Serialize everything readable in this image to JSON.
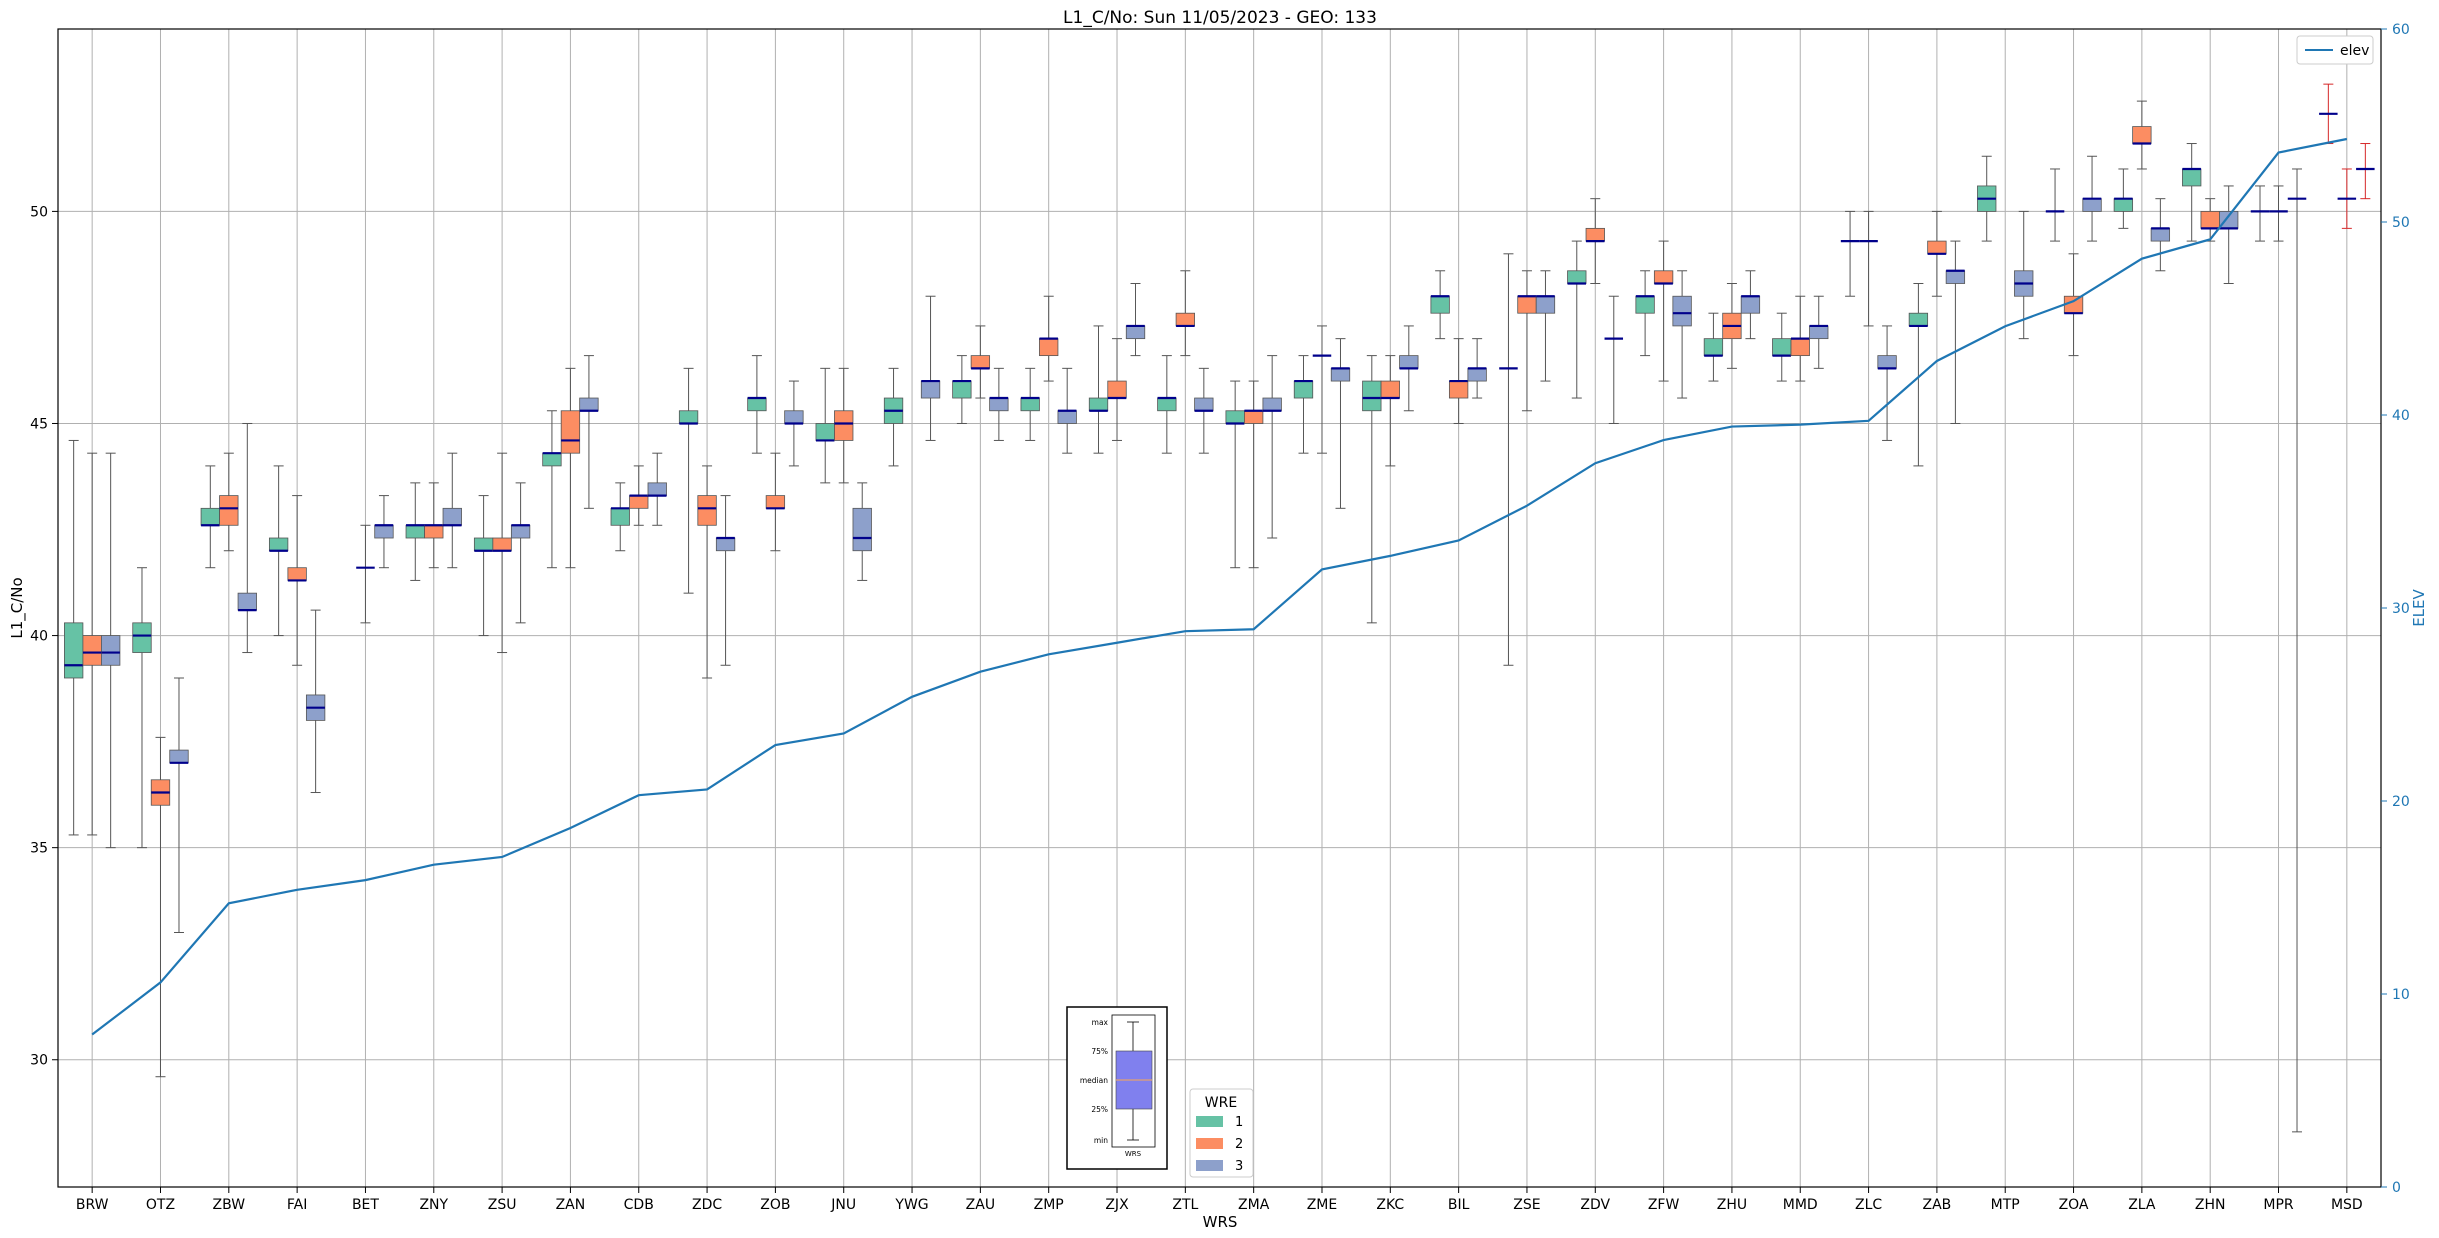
{
  "chart_data": {
    "type": "box",
    "title": "L1_C/No: Sun 11/05/2023 - GEO: 133",
    "xlabel": "WRS",
    "ylabel": "L1_C/No",
    "y2label": "ELEV",
    "ylim": [
      27.0,
      54.3
    ],
    "y2lim": [
      0,
      60
    ],
    "yticks": [
      30,
      35,
      40,
      45,
      50
    ],
    "y2ticks": [
      0,
      10,
      20,
      30,
      40,
      50,
      60
    ],
    "grid": true,
    "legend_elev": {
      "label": "elev",
      "position": "top-right"
    },
    "legend_wre": {
      "title": "WRE",
      "position": "bottom-center",
      "entries": [
        "1",
        "2",
        "3"
      ]
    },
    "key_box": {
      "labels": [
        "max",
        "75%",
        "median",
        "25%",
        "min"
      ],
      "xlabel": "WRS"
    },
    "colors": {
      "wre1": "#66c2a5",
      "wre2": "#fc8d62",
      "wre3": "#8da0cb",
      "median": "#00008b",
      "elev": "#1f77b4",
      "whisker": "#555555",
      "outlier_whisker": "#d62728",
      "key_box": "#8080ee"
    },
    "categories": [
      "BRW",
      "OTZ",
      "ZBW",
      "FAI",
      "BET",
      "ZNY",
      "ZSU",
      "ZAN",
      "CDB",
      "ZDC",
      "ZOB",
      "JNU",
      "YWG",
      "ZAU",
      "ZMP",
      "ZJX",
      "ZTL",
      "ZMA",
      "ZME",
      "ZKC",
      "BIL",
      "ZSE",
      "ZDV",
      "ZFW",
      "ZHU",
      "MMD",
      "ZLC",
      "ZAB",
      "MTP",
      "ZOA",
      "ZLA",
      "ZHN",
      "MPR",
      "MSD"
    ],
    "elev": [
      7.9,
      10.6,
      14.7,
      15.4,
      15.9,
      16.7,
      17.1,
      18.6,
      20.3,
      20.6,
      22.9,
      23.5,
      25.4,
      26.7,
      27.6,
      28.2,
      28.8,
      28.9,
      32.0,
      32.7,
      33.5,
      35.3,
      37.5,
      38.7,
      39.4,
      39.5,
      39.7,
      42.8,
      44.6,
      45.9,
      48.1,
      49.1,
      53.6,
      54.3
    ],
    "boxes": [
      {
        "station": "BRW",
        "wre": 1,
        "min": 35.3,
        "q1": 39.0,
        "median": 39.3,
        "q3": 40.3,
        "max": 44.6
      },
      {
        "station": "BRW",
        "wre": 2,
        "min": 35.3,
        "q1": 39.3,
        "median": 39.6,
        "q3": 40.0,
        "max": 44.3
      },
      {
        "station": "BRW",
        "wre": 3,
        "min": 35.0,
        "q1": 39.3,
        "median": 39.6,
        "q3": 40.0,
        "max": 44.3
      },
      {
        "station": "OTZ",
        "wre": 1,
        "min": 35.0,
        "q1": 39.6,
        "median": 40.0,
        "q3": 40.3,
        "max": 41.6
      },
      {
        "station": "OTZ",
        "wre": 2,
        "min": 29.6,
        "q1": 36.0,
        "median": 36.3,
        "q3": 36.6,
        "max": 37.6
      },
      {
        "station": "OTZ",
        "wre": 3,
        "min": 33.0,
        "q1": 37.0,
        "median": 37.0,
        "q3": 37.3,
        "max": 39.0
      },
      {
        "station": "ZBW",
        "wre": 1,
        "min": 41.6,
        "q1": 42.6,
        "median": 42.6,
        "q3": 43.0,
        "max": 44.0
      },
      {
        "station": "ZBW",
        "wre": 2,
        "min": 42.0,
        "q1": 42.6,
        "median": 43.0,
        "q3": 43.3,
        "max": 44.3
      },
      {
        "station": "ZBW",
        "wre": 3,
        "min": 39.6,
        "q1": 40.6,
        "median": 40.6,
        "q3": 41.0,
        "max": 45.0
      },
      {
        "station": "FAI",
        "wre": 1,
        "min": 40.0,
        "q1": 42.0,
        "median": 42.0,
        "q3": 42.3,
        "max": 44.0
      },
      {
        "station": "FAI",
        "wre": 2,
        "min": 39.3,
        "q1": 41.3,
        "median": 41.3,
        "q3": 41.6,
        "max": 43.3
      },
      {
        "station": "FAI",
        "wre": 3,
        "min": 36.3,
        "q1": 38.0,
        "median": 38.3,
        "q3": 38.6,
        "max": 40.6
      },
      {
        "station": "BET",
        "wre": 2,
        "min": 40.3,
        "q1": 41.6,
        "median": 41.6,
        "q3": 41.6,
        "max": 42.6
      },
      {
        "station": "BET",
        "wre": 3,
        "min": 41.6,
        "q1": 42.3,
        "median": 42.6,
        "q3": 42.6,
        "max": 43.3
      },
      {
        "station": "ZNY",
        "wre": 1,
        "min": 41.3,
        "q1": 42.3,
        "median": 42.6,
        "q3": 42.6,
        "max": 43.6
      },
      {
        "station": "ZNY",
        "wre": 2,
        "min": 41.6,
        "q1": 42.3,
        "median": 42.6,
        "q3": 42.6,
        "max": 43.6
      },
      {
        "station": "ZNY",
        "wre": 3,
        "min": 41.6,
        "q1": 42.6,
        "median": 42.6,
        "q3": 43.0,
        "max": 44.3
      },
      {
        "station": "ZSU",
        "wre": 1,
        "min": 40.0,
        "q1": 42.0,
        "median": 42.0,
        "q3": 42.3,
        "max": 43.3
      },
      {
        "station": "ZSU",
        "wre": 2,
        "min": 39.6,
        "q1": 42.0,
        "median": 42.0,
        "q3": 42.3,
        "max": 44.3
      },
      {
        "station": "ZSU",
        "wre": 3,
        "min": 40.3,
        "q1": 42.3,
        "median": 42.6,
        "q3": 42.6,
        "max": 43.6
      },
      {
        "station": "ZAN",
        "wre": 1,
        "min": 41.6,
        "q1": 44.0,
        "median": 44.3,
        "q3": 44.3,
        "max": 45.3
      },
      {
        "station": "ZAN",
        "wre": 2,
        "min": 41.6,
        "q1": 44.3,
        "median": 44.6,
        "q3": 45.3,
        "max": 46.3
      },
      {
        "station": "ZAN",
        "wre": 3,
        "min": 43.0,
        "q1": 45.3,
        "median": 45.3,
        "q3": 45.6,
        "max": 46.6
      },
      {
        "station": "CDB",
        "wre": 1,
        "min": 42.0,
        "q1": 42.6,
        "median": 43.0,
        "q3": 43.0,
        "max": 43.6
      },
      {
        "station": "CDB",
        "wre": 2,
        "min": 42.6,
        "q1": 43.0,
        "median": 43.3,
        "q3": 43.3,
        "max": 44.0
      },
      {
        "station": "CDB",
        "wre": 3,
        "min": 42.6,
        "q1": 43.3,
        "median": 43.3,
        "q3": 43.6,
        "max": 44.3
      },
      {
        "station": "ZDC",
        "wre": 1,
        "min": 41.0,
        "q1": 45.0,
        "median": 45.0,
        "q3": 45.3,
        "max": 46.3
      },
      {
        "station": "ZDC",
        "wre": 2,
        "min": 39.0,
        "q1": 42.6,
        "median": 43.0,
        "q3": 43.3,
        "max": 44.0
      },
      {
        "station": "ZDC",
        "wre": 3,
        "min": 39.3,
        "q1": 42.0,
        "median": 42.3,
        "q3": 42.3,
        "max": 43.3
      },
      {
        "station": "ZOB",
        "wre": 1,
        "min": 44.3,
        "q1": 45.3,
        "median": 45.6,
        "q3": 45.6,
        "max": 46.6
      },
      {
        "station": "ZOB",
        "wre": 2,
        "min": 42.0,
        "q1": 43.0,
        "median": 43.0,
        "q3": 43.3,
        "max": 44.3
      },
      {
        "station": "ZOB",
        "wre": 3,
        "min": 44.0,
        "q1": 45.0,
        "median": 45.0,
        "q3": 45.3,
        "max": 46.0
      },
      {
        "station": "JNU",
        "wre": 1,
        "min": 43.6,
        "q1": 44.6,
        "median": 44.6,
        "q3": 45.0,
        "max": 46.3
      },
      {
        "station": "JNU",
        "wre": 2,
        "min": 43.6,
        "q1": 44.6,
        "median": 45.0,
        "q3": 45.3,
        "max": 46.3
      },
      {
        "station": "JNU",
        "wre": 3,
        "min": 41.3,
        "q1": 42.0,
        "median": 42.3,
        "q3": 43.0,
        "max": 43.6
      },
      {
        "station": "YWG",
        "wre": 1,
        "min": 44.0,
        "q1": 45.0,
        "median": 45.3,
        "q3": 45.6,
        "max": 46.3
      },
      {
        "station": "YWG",
        "wre": 3,
        "min": 44.6,
        "q1": 45.6,
        "median": 46.0,
        "q3": 46.0,
        "max": 48.0
      },
      {
        "station": "ZAU",
        "wre": 1,
        "min": 45.0,
        "q1": 45.6,
        "median": 46.0,
        "q3": 46.0,
        "max": 46.6
      },
      {
        "station": "ZAU",
        "wre": 2,
        "min": 45.6,
        "q1": 46.3,
        "median": 46.3,
        "q3": 46.6,
        "max": 47.3
      },
      {
        "station": "ZAU",
        "wre": 3,
        "min": 44.6,
        "q1": 45.3,
        "median": 45.6,
        "q3": 45.6,
        "max": 46.3
      },
      {
        "station": "ZMP",
        "wre": 1,
        "min": 44.6,
        "q1": 45.3,
        "median": 45.6,
        "q3": 45.6,
        "max": 46.3
      },
      {
        "station": "ZMP",
        "wre": 2,
        "min": 46.0,
        "q1": 46.6,
        "median": 47.0,
        "q3": 47.0,
        "max": 48.0
      },
      {
        "station": "ZMP",
        "wre": 3,
        "min": 44.3,
        "q1": 45.0,
        "median": 45.3,
        "q3": 45.3,
        "max": 46.3
      },
      {
        "station": "ZJX",
        "wre": 1,
        "min": 44.3,
        "q1": 45.3,
        "median": 45.3,
        "q3": 45.6,
        "max": 47.3
      },
      {
        "station": "ZJX",
        "wre": 2,
        "min": 44.6,
        "q1": 45.6,
        "median": 45.6,
        "q3": 46.0,
        "max": 47.0
      },
      {
        "station": "ZJX",
        "wre": 3,
        "min": 46.6,
        "q1": 47.0,
        "median": 47.3,
        "q3": 47.3,
        "max": 48.3
      },
      {
        "station": "ZTL",
        "wre": 1,
        "min": 44.3,
        "q1": 45.3,
        "median": 45.6,
        "q3": 45.6,
        "max": 46.6
      },
      {
        "station": "ZTL",
        "wre": 2,
        "min": 46.6,
        "q1": 47.3,
        "median": 47.3,
        "q3": 47.6,
        "max": 48.6
      },
      {
        "station": "ZTL",
        "wre": 3,
        "min": 44.3,
        "q1": 45.3,
        "median": 45.3,
        "q3": 45.6,
        "max": 46.3
      },
      {
        "station": "ZMA",
        "wre": 1,
        "min": 41.6,
        "q1": 45.0,
        "median": 45.0,
        "q3": 45.3,
        "max": 46.0
      },
      {
        "station": "ZMA",
        "wre": 2,
        "min": 41.6,
        "q1": 45.0,
        "median": 45.3,
        "q3": 45.3,
        "max": 46.0
      },
      {
        "station": "ZMA",
        "wre": 3,
        "min": 42.3,
        "q1": 45.3,
        "median": 45.3,
        "q3": 45.6,
        "max": 46.6
      },
      {
        "station": "ZME",
        "wre": 1,
        "min": 44.3,
        "q1": 45.6,
        "median": 46.0,
        "q3": 46.0,
        "max": 46.6
      },
      {
        "station": "ZME",
        "wre": 2,
        "min": 44.3,
        "q1": 46.6,
        "median": 46.6,
        "q3": 46.6,
        "max": 47.3
      },
      {
        "station": "ZME",
        "wre": 3,
        "min": 43.0,
        "q1": 46.0,
        "median": 46.3,
        "q3": 46.3,
        "max": 47.0
      },
      {
        "station": "ZKC",
        "wre": 1,
        "min": 40.3,
        "q1": 45.3,
        "median": 45.6,
        "q3": 46.0,
        "max": 46.6
      },
      {
        "station": "ZKC",
        "wre": 2,
        "min": 44.0,
        "q1": 45.6,
        "median": 45.6,
        "q3": 46.0,
        "max": 46.6
      },
      {
        "station": "ZKC",
        "wre": 3,
        "min": 45.3,
        "q1": 46.3,
        "median": 46.3,
        "q3": 46.6,
        "max": 47.3
      },
      {
        "station": "BIL",
        "wre": 1,
        "min": 47.0,
        "q1": 47.6,
        "median": 48.0,
        "q3": 48.0,
        "max": 48.6
      },
      {
        "station": "BIL",
        "wre": 2,
        "min": 45.0,
        "q1": 45.6,
        "median": 46.0,
        "q3": 46.0,
        "max": 47.0
      },
      {
        "station": "BIL",
        "wre": 3,
        "min": 45.6,
        "q1": 46.0,
        "median": 46.3,
        "q3": 46.3,
        "max": 47.0
      },
      {
        "station": "ZSE",
        "wre": 1,
        "min": 39.3,
        "q1": 46.3,
        "median": 46.3,
        "q3": 46.3,
        "max": 49.0
      },
      {
        "station": "ZSE",
        "wre": 2,
        "min": 45.3,
        "q1": 47.6,
        "median": 48.0,
        "q3": 48.0,
        "max": 48.6
      },
      {
        "station": "ZSE",
        "wre": 3,
        "min": 46.0,
        "q1": 47.6,
        "median": 48.0,
        "q3": 48.0,
        "max": 48.6
      },
      {
        "station": "ZDV",
        "wre": 1,
        "min": 45.6,
        "q1": 48.3,
        "median": 48.3,
        "q3": 48.6,
        "max": 49.3
      },
      {
        "station": "ZDV",
        "wre": 2,
        "min": 48.3,
        "q1": 49.3,
        "median": 49.3,
        "q3": 49.6,
        "max": 50.3
      },
      {
        "station": "ZDV",
        "wre": 3,
        "min": 45.0,
        "q1": 47.0,
        "median": 47.0,
        "q3": 47.0,
        "max": 48.0
      },
      {
        "station": "ZFW",
        "wre": 1,
        "min": 46.6,
        "q1": 47.6,
        "median": 48.0,
        "q3": 48.0,
        "max": 48.6
      },
      {
        "station": "ZFW",
        "wre": 2,
        "min": 46.0,
        "q1": 48.3,
        "median": 48.3,
        "q3": 48.6,
        "max": 49.3
      },
      {
        "station": "ZFW",
        "wre": 3,
        "min": 45.6,
        "q1": 47.3,
        "median": 47.6,
        "q3": 48.0,
        "max": 48.6
      },
      {
        "station": "ZHU",
        "wre": 1,
        "min": 46.0,
        "q1": 46.6,
        "median": 46.6,
        "q3": 47.0,
        "max": 47.6
      },
      {
        "station": "ZHU",
        "wre": 2,
        "min": 46.3,
        "q1": 47.0,
        "median": 47.3,
        "q3": 47.6,
        "max": 48.3
      },
      {
        "station": "ZHU",
        "wre": 3,
        "min": 47.0,
        "q1": 47.6,
        "median": 48.0,
        "q3": 48.0,
        "max": 48.6
      },
      {
        "station": "MMD",
        "wre": 1,
        "min": 46.0,
        "q1": 46.6,
        "median": 46.6,
        "q3": 47.0,
        "max": 47.6
      },
      {
        "station": "MMD",
        "wre": 2,
        "min": 46.0,
        "q1": 46.6,
        "median": 47.0,
        "q3": 47.0,
        "max": 48.0
      },
      {
        "station": "MMD",
        "wre": 3,
        "min": 46.3,
        "q1": 47.0,
        "median": 47.3,
        "q3": 47.3,
        "max": 48.0
      },
      {
        "station": "ZLC",
        "wre": 1,
        "min": 48.0,
        "q1": 49.3,
        "median": 49.3,
        "q3": 49.3,
        "max": 50.0
      },
      {
        "station": "ZLC",
        "wre": 2,
        "min": 47.3,
        "q1": 49.3,
        "median": 49.3,
        "q3": 49.3,
        "max": 50.0
      },
      {
        "station": "ZLC",
        "wre": 3,
        "min": 44.6,
        "q1": 46.3,
        "median": 46.3,
        "q3": 46.6,
        "max": 47.3
      },
      {
        "station": "ZAB",
        "wre": 1,
        "min": 44.0,
        "q1": 47.3,
        "median": 47.3,
        "q3": 47.6,
        "max": 48.3
      },
      {
        "station": "ZAB",
        "wre": 2,
        "min": 48.0,
        "q1": 49.0,
        "median": 49.0,
        "q3": 49.3,
        "max": 50.0
      },
      {
        "station": "ZAB",
        "wre": 3,
        "min": 45.0,
        "q1": 48.3,
        "median": 48.6,
        "q3": 48.6,
        "max": 49.3
      },
      {
        "station": "MTP",
        "wre": 1,
        "min": 49.3,
        "q1": 50.0,
        "median": 50.3,
        "q3": 50.6,
        "max": 51.3
      },
      {
        "station": "MTP",
        "wre": 3,
        "min": 47.0,
        "q1": 48.0,
        "median": 48.3,
        "q3": 48.6,
        "max": 50.0
      },
      {
        "station": "ZOA",
        "wre": 1,
        "min": 49.3,
        "q1": 50.0,
        "median": 50.0,
        "q3": 50.0,
        "max": 51.0
      },
      {
        "station": "ZOA",
        "wre": 2,
        "min": 46.6,
        "q1": 47.6,
        "median": 47.6,
        "q3": 48.0,
        "max": 49.0
      },
      {
        "station": "ZOA",
        "wre": 3,
        "min": 49.3,
        "q1": 50.0,
        "median": 50.3,
        "q3": 50.3,
        "max": 51.3
      },
      {
        "station": "ZLA",
        "wre": 1,
        "min": 49.6,
        "q1": 50.0,
        "median": 50.3,
        "q3": 50.3,
        "max": 51.0
      },
      {
        "station": "ZLA",
        "wre": 2,
        "min": 51.0,
        "q1": 51.6,
        "median": 51.6,
        "q3": 52.0,
        "max": 52.6
      },
      {
        "station": "ZLA",
        "wre": 3,
        "min": 48.6,
        "q1": 49.3,
        "median": 49.6,
        "q3": 49.6,
        "max": 50.3
      },
      {
        "station": "ZHN",
        "wre": 1,
        "min": 49.3,
        "q1": 50.6,
        "median": 51.0,
        "q3": 51.0,
        "max": 51.6
      },
      {
        "station": "ZHN",
        "wre": 2,
        "min": 49.3,
        "q1": 49.6,
        "median": 49.6,
        "q3": 50.0,
        "max": 50.3
      },
      {
        "station": "ZHN",
        "wre": 3,
        "min": 48.3,
        "q1": 49.6,
        "median": 49.6,
        "q3": 50.0,
        "max": 50.6
      },
      {
        "station": "MPR",
        "wre": 1,
        "min": 49.3,
        "q1": 50.0,
        "median": 50.0,
        "q3": 50.0,
        "max": 50.6
      },
      {
        "station": "MPR",
        "wre": 2,
        "min": 49.3,
        "q1": 50.0,
        "median": 50.0,
        "q3": 50.0,
        "max": 50.6
      },
      {
        "station": "MPR",
        "wre": 3,
        "min": 28.3,
        "q1": 50.3,
        "median": 50.3,
        "q3": 50.3,
        "max": 51.0
      },
      {
        "station": "MSD",
        "wre": 1,
        "min": 51.6,
        "q1": 52.3,
        "median": 52.3,
        "q3": 52.3,
        "max": 53.0,
        "red": true
      },
      {
        "station": "MSD",
        "wre": 2,
        "min": 49.6,
        "q1": 50.3,
        "median": 50.3,
        "q3": 50.3,
        "max": 51.0,
        "red": true
      },
      {
        "station": "MSD",
        "wre": 3,
        "min": 50.3,
        "q1": 51.0,
        "median": 51.0,
        "q3": 51.0,
        "max": 51.6,
        "red": true
      }
    ]
  }
}
